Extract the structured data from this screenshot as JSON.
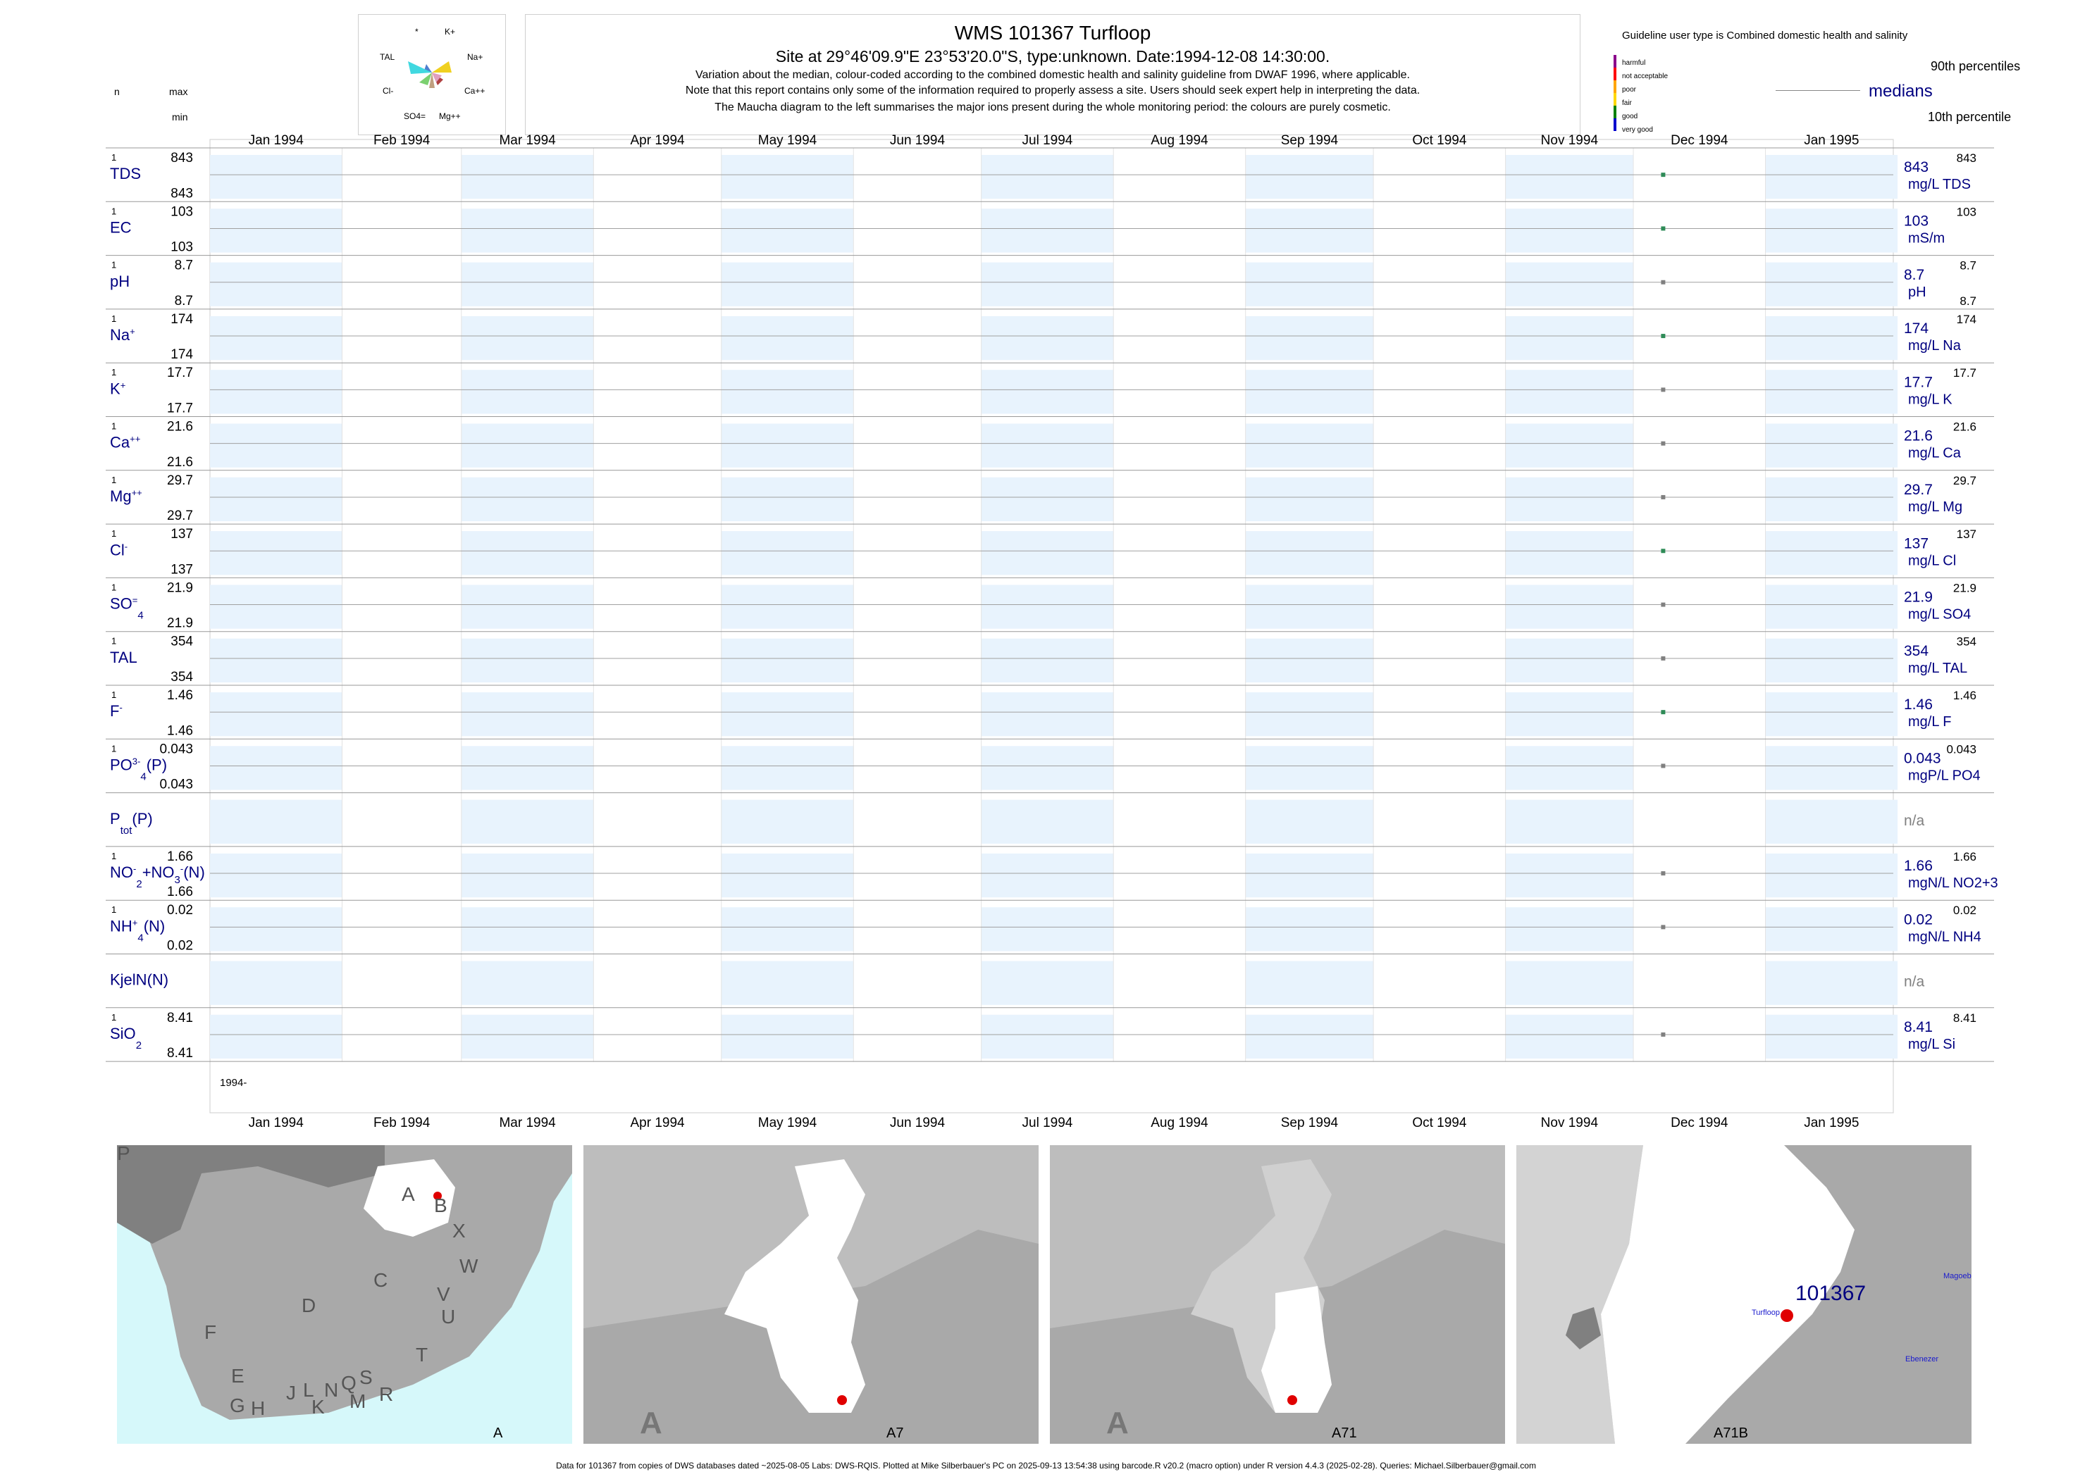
{
  "header": {
    "title": "WMS 101367  Turfloop",
    "subtitle": "Site at 29°46'09.9\"E 23°53'20.0\"S, type:unknown. Date:1994-12-08 14:30:00.",
    "note1": "Variation about the median,  colour-coded according to the combined domestic health and salinity guideline from DWAF 1996, where applicable.",
    "note2": "Note that this report contains only some of the information required to properly assess a site. Users should seek expert help in interpreting the data.",
    "note3": "The Maucha diagram to the left summarises the major ions present during the whole monitoring period: the colours are purely cosmetic."
  },
  "maucha": {
    "labels": [
      "*",
      "K+",
      "TAL",
      "Na+",
      "Cl-",
      "Ca++",
      "SO4=",
      "Mg++"
    ]
  },
  "left_header": {
    "n": "n",
    "max": "max",
    "min": "min"
  },
  "guideline": {
    "title": "Guideline user type is Combined domestic health and salinity",
    "levels": [
      {
        "label": "harmful",
        "color": "#8b008b"
      },
      {
        "label": "not acceptable",
        "color": "#ff0000"
      },
      {
        "label": "poor",
        "color": "#ffa500"
      },
      {
        "label": "fair",
        "color": "#ffd700"
      },
      {
        "label": "good",
        "color": "#008000"
      },
      {
        "label": "very good",
        "color": "#0000cd"
      }
    ]
  },
  "legend": {
    "p90": "90th percentiles",
    "median": "medians",
    "p10": "10th percentile"
  },
  "months": [
    "Jan 1994",
    "Feb 1994",
    "Mar 1994",
    "Apr 1994",
    "May 1994",
    "Jun 1994",
    "Jul 1994",
    "Aug 1994",
    "Sep 1994",
    "Oct 1994",
    "Nov 1994",
    "Dec 1994",
    "Jan 1995"
  ],
  "year_label": "1994-",
  "chart_data": {
    "type": "scatter",
    "x_axis": {
      "start": "1994-01-01",
      "end": "1995-01-31"
    },
    "sample_date": "1994-12-08",
    "colors": {
      "label": "#000080",
      "band": "#e8f3fd",
      "point_green": "#2e8b57",
      "point_grey": "#808080"
    },
    "parameters": [
      {
        "name": "TDS",
        "n": "1",
        "max": "843",
        "min": "843",
        "value": 843,
        "value_label": "843",
        "unit": "mg/L TDS",
        "p90_label": "843",
        "p10_label": "",
        "color": "green"
      },
      {
        "name": "EC",
        "n": "1",
        "max": "103",
        "min": "103",
        "value": 103,
        "value_label": "103",
        "unit": "mS/m",
        "p90_label": "103",
        "p10_label": "",
        "color": "green"
      },
      {
        "name": "pH",
        "n": "1",
        "max": "8.7",
        "min": "8.7",
        "value": 8.7,
        "value_label": "8.7",
        "unit": "pH",
        "p90_label": "8.7",
        "p10_label": "8.7",
        "color": "grey"
      },
      {
        "name": "Na",
        "sup": "+",
        "n": "1",
        "max": "174",
        "min": "174",
        "value": 174,
        "value_label": "174",
        "unit": "mg/L Na",
        "p90_label": "174",
        "p10_label": "",
        "color": "green"
      },
      {
        "name": "K",
        "sup": "+",
        "n": "1",
        "max": "17.7",
        "min": "17.7",
        "value": 17.7,
        "value_label": "17.7",
        "unit": "mg/L K",
        "p90_label": "17.7",
        "p10_label": "",
        "color": "grey"
      },
      {
        "name": "Ca",
        "sup": "++",
        "n": "1",
        "max": "21.6",
        "min": "21.6",
        "value": 21.6,
        "value_label": "21.6",
        "unit": "mg/L Ca",
        "p90_label": "21.6",
        "p10_label": "",
        "color": "grey"
      },
      {
        "name": "Mg",
        "sup": "++",
        "n": "1",
        "max": "29.7",
        "min": "29.7",
        "value": 29.7,
        "value_label": "29.7",
        "unit": "mg/L Mg",
        "p90_label": "29.7",
        "p10_label": "",
        "color": "grey"
      },
      {
        "name": "Cl",
        "sup": "-",
        "n": "1",
        "max": "137",
        "min": "137",
        "value": 137,
        "value_label": "137",
        "unit": "mg/L Cl",
        "p90_label": "137",
        "p10_label": "",
        "color": "green"
      },
      {
        "name": "SO",
        "sub": "4",
        "sup": "=",
        "n": "1",
        "max": "21.9",
        "min": "21.9",
        "value": 21.9,
        "value_label": "21.9",
        "unit": "mg/L SO4",
        "p90_label": "21.9",
        "p10_label": "",
        "color": "grey"
      },
      {
        "name": "TAL",
        "n": "1",
        "max": "354",
        "min": "354",
        "value": 354,
        "value_label": "354",
        "unit": "mg/L TAL",
        "p90_label": "354",
        "p10_label": "",
        "color": "grey"
      },
      {
        "name": "F",
        "sup": "-",
        "n": "1",
        "max": "1.46",
        "min": "1.46",
        "value": 1.46,
        "value_label": "1.46",
        "unit": "mg/L F",
        "p90_label": "1.46",
        "p10_label": "",
        "color": "green"
      },
      {
        "name": "PO",
        "sub": "4",
        "sup": "3-",
        "suffix": "(P)",
        "n": "1",
        "max": "0.043",
        "min": "0.043",
        "value": 0.043,
        "value_label": "0.043",
        "unit": "mgP/L PO4",
        "p90_label": "0.043",
        "p10_label": "",
        "color": "grey"
      },
      {
        "name": "P",
        "sub": "tot",
        "suffix": "(P)",
        "n": "",
        "max": "",
        "min": "",
        "value": null,
        "value_label": "n/a",
        "unit": "",
        "p90_label": "",
        "p10_label": "",
        "color": "none"
      },
      {
        "name": "NO",
        "sub": "2",
        "sup": "-",
        "suffix": "+NO",
        "sub2": "3",
        "sup2": "-",
        "suffix2": "(N)",
        "n": "1",
        "max": "1.66",
        "min": "1.66",
        "value": 1.66,
        "value_label": "1.66",
        "unit": "mgN/L NO2+3",
        "p90_label": "1.66",
        "p10_label": "",
        "color": "grey"
      },
      {
        "name": "NH",
        "sub": "4",
        "sup": "+",
        "suffix": "(N)",
        "n": "1",
        "max": "0.02",
        "min": "0.02",
        "value": 0.02,
        "value_label": "0.02",
        "unit": "mgN/L NH4",
        "p90_label": "0.02",
        "p10_label": "",
        "color": "grey"
      },
      {
        "name": "KjelN(N)",
        "n": "",
        "max": "",
        "min": "",
        "value": null,
        "value_label": "n/a",
        "unit": "",
        "p90_label": "",
        "p10_label": "",
        "color": "none"
      },
      {
        "name": "SiO",
        "sub": "2",
        "n": "1",
        "max": "8.41",
        "min": "8.41",
        "value": 8.41,
        "value_label": "8.41",
        "unit": "mg/L Si",
        "p90_label": "8.41",
        "p10_label": "",
        "color": "grey"
      }
    ]
  },
  "maps": [
    {
      "caption": "A",
      "letters": [
        "A",
        "B",
        "X",
        "C",
        "W",
        "D",
        "V",
        "U",
        "F",
        "T",
        "E",
        "J",
        "L",
        "N",
        "Q",
        "S",
        "R",
        "G",
        "H",
        "K",
        "M",
        "P"
      ]
    },
    {
      "caption": "A7",
      "region_letter": "A"
    },
    {
      "caption": "A71",
      "region_letter": "A"
    },
    {
      "caption": "A71B",
      "site_label": "101367",
      "place_labels": [
        "Turfloop",
        "Magoebaskloof",
        "Ebenezer"
      ]
    }
  ],
  "footer": "Data for 101367 from copies of DWS databases dated ~2025-08-05 Labs: DWS-RQIS. Plotted at Mike Silberbauer's PC on 2025-09-13 13:54:38 using barcode.R v20.2 (macro option) under R version 4.4.3 (2025-02-28). Queries: Michael.Silberbauer@gmail.com"
}
